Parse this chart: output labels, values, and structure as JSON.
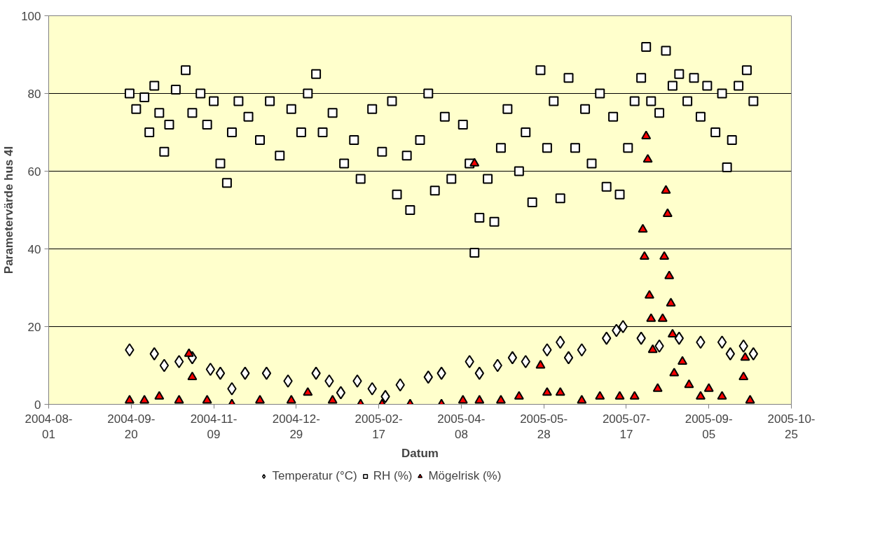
{
  "chart_data": {
    "type": "scatter",
    "xlabel": "Datum",
    "ylabel": "Parametervärde hus 4I",
    "xlim": [
      "2004-08-01",
      "2005-10-25"
    ],
    "xticks": [
      "2004-08-01",
      "2004-09-20",
      "2004-11-09",
      "2004-12-29",
      "2005-02-17",
      "2005-04-08",
      "2005-05-28",
      "2005-07-17",
      "2005-09-05",
      "2005-10-25"
    ],
    "ylim": [
      0,
      100
    ],
    "yticks": [
      0,
      20,
      40,
      60,
      80,
      100
    ],
    "grid": "y",
    "legend": "bottom",
    "series": [
      {
        "name": "Temperatur (°C)",
        "color": "#ffffff",
        "marker": "diamond",
        "x": [
          "2004-09-19",
          "2004-10-04",
          "2004-10-10",
          "2004-10-19",
          "2004-10-27",
          "2004-11-07",
          "2004-11-13",
          "2004-11-20",
          "2004-11-28",
          "2004-12-11",
          "2004-12-24",
          "2005-01-10",
          "2005-01-18",
          "2005-01-25",
          "2005-02-04",
          "2005-02-13",
          "2005-02-21",
          "2005-03-02",
          "2005-03-19",
          "2005-03-27",
          "2005-04-13",
          "2005-04-19",
          "2005-04-30",
          "2005-05-09",
          "2005-05-17",
          "2005-05-30",
          "2005-06-07",
          "2005-06-12",
          "2005-06-20",
          "2005-07-05",
          "2005-07-11",
          "2005-07-15",
          "2005-07-26",
          "2005-08-06",
          "2005-08-18",
          "2005-08-31",
          "2005-09-13",
          "2005-09-18",
          "2005-09-26",
          "2005-10-02"
        ],
        "values": [
          14,
          13,
          10,
          11,
          12,
          9,
          8,
          4,
          8,
          8,
          6,
          8,
          6,
          3,
          6,
          4,
          2,
          5,
          7,
          8,
          11,
          8,
          10,
          12,
          11,
          14,
          16,
          12,
          14,
          17,
          19,
          20,
          17,
          15,
          17,
          16,
          16,
          13,
          15,
          13
        ]
      },
      {
        "name": "RH (%)",
        "color": "#ffffff",
        "marker": "square",
        "x": [
          "2004-09-19",
          "2004-09-23",
          "2004-09-28",
          "2004-10-01",
          "2004-10-04",
          "2004-10-07",
          "2004-10-10",
          "2004-10-13",
          "2004-10-17",
          "2004-10-23",
          "2004-10-27",
          "2004-11-01",
          "2004-11-05",
          "2004-11-09",
          "2004-11-13",
          "2004-11-17",
          "2004-11-20",
          "2004-11-24",
          "2004-11-30",
          "2004-12-07",
          "2004-12-13",
          "2004-12-19",
          "2004-12-26",
          "2005-01-01",
          "2005-01-05",
          "2005-01-10",
          "2005-01-14",
          "2005-01-20",
          "2005-01-27",
          "2005-02-02",
          "2005-02-06",
          "2005-02-13",
          "2005-02-19",
          "2005-02-25",
          "2005-02-28",
          "2005-03-06",
          "2005-03-08",
          "2005-03-14",
          "2005-03-19",
          "2005-03-23",
          "2005-03-29",
          "2005-04-02",
          "2005-04-09",
          "2005-04-13",
          "2005-04-16",
          "2005-04-19",
          "2005-04-24",
          "2005-04-28",
          "2005-05-02",
          "2005-05-06",
          "2005-05-13",
          "2005-05-17",
          "2005-05-21",
          "2005-05-26",
          "2005-05-30",
          "2005-06-03",
          "2005-06-07",
          "2005-06-12",
          "2005-06-16",
          "2005-06-22",
          "2005-06-26",
          "2005-07-01",
          "2005-07-05",
          "2005-07-09",
          "2005-07-13",
          "2005-07-18",
          "2005-07-22",
          "2005-07-26",
          "2005-07-29",
          "2005-08-01",
          "2005-08-06",
          "2005-08-10",
          "2005-08-14",
          "2005-08-18",
          "2005-08-23",
          "2005-08-27",
          "2005-08-31",
          "2005-09-04",
          "2005-09-09",
          "2005-09-13",
          "2005-09-16",
          "2005-09-19",
          "2005-09-23",
          "2005-09-28",
          "2005-10-02"
        ],
        "values": [
          80,
          76,
          79,
          70,
          82,
          75,
          65,
          72,
          81,
          86,
          75,
          80,
          72,
          78,
          62,
          57,
          70,
          78,
          74,
          68,
          78,
          64,
          76,
          70,
          80,
          85,
          70,
          75,
          62,
          68,
          58,
          76,
          65,
          78,
          54,
          64,
          50,
          68,
          80,
          55,
          74,
          58,
          72,
          62,
          39,
          48,
          58,
          47,
          66,
          76,
          60,
          70,
          52,
          86,
          66,
          78,
          53,
          84,
          66,
          76,
          62,
          80,
          56,
          74,
          54,
          66,
          78,
          84,
          92,
          78,
          75,
          91,
          82,
          85,
          78,
          84,
          74,
          82,
          70,
          80,
          61,
          68,
          82,
          86,
          78
        ]
      },
      {
        "name": "Mögelrisk (%)",
        "color": "#ff0000",
        "marker": "triangle",
        "x": [
          "2004-09-19",
          "2004-09-28",
          "2004-10-07",
          "2004-10-19",
          "2004-10-25",
          "2004-10-27",
          "2004-11-05",
          "2004-11-20",
          "2004-12-07",
          "2004-12-26",
          "2005-01-05",
          "2005-01-20",
          "2005-02-06",
          "2005-02-19",
          "2005-03-08",
          "2005-03-27",
          "2005-04-09",
          "2005-04-16",
          "2005-04-19",
          "2005-05-02",
          "2005-05-13",
          "2005-05-26",
          "2005-05-30",
          "2005-06-07",
          "2005-06-20",
          "2005-07-01",
          "2005-07-13",
          "2005-07-22",
          "2005-07-27",
          "2005-07-28",
          "2005-07-29",
          "2005-07-30",
          "2005-07-31",
          "2005-08-01",
          "2005-08-02",
          "2005-08-05",
          "2005-08-08",
          "2005-08-09",
          "2005-08-10",
          "2005-08-11",
          "2005-08-12",
          "2005-08-13",
          "2005-08-14",
          "2005-08-15",
          "2005-08-20",
          "2005-08-24",
          "2005-08-31",
          "2005-09-05",
          "2005-09-13",
          "2005-09-26",
          "2005-09-27",
          "2005-09-30"
        ],
        "values": [
          1,
          1,
          2,
          1,
          13,
          7,
          1,
          0,
          1,
          1,
          3,
          1,
          0,
          0,
          0,
          0,
          1,
          62,
          1,
          1,
          2,
          10,
          3,
          3,
          1,
          2,
          2,
          2,
          45,
          38,
          69,
          63,
          28,
          22,
          14,
          4,
          22,
          38,
          55,
          49,
          33,
          26,
          18,
          8,
          11,
          5,
          2,
          4,
          2,
          7,
          12,
          1
        ]
      }
    ]
  }
}
